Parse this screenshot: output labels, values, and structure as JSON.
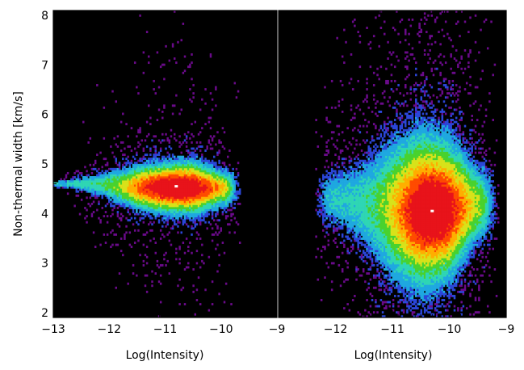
{
  "chart_data": [
    {
      "type": "heatmap",
      "panel": "left",
      "xlabel": "Log(Intensity)",
      "ylabel": "Non-thermal width [km/s]",
      "xlim": [
        -13,
        -9
      ],
      "ylim": [
        1.9,
        8.1
      ],
      "xticks": [
        -13,
        -12,
        -11,
        -10,
        -9
      ],
      "xtick_labels": [
        "−13",
        "−12",
        "−11",
        "−10",
        "−9"
      ],
      "yticks": [
        2,
        3,
        4,
        5,
        6,
        7,
        8
      ],
      "peak": {
        "x": -10.8,
        "y": 4.55
      },
      "structure": [
        {
          "x": -13.0,
          "y_center": 4.6,
          "y_half_width": 0.05
        },
        {
          "x": -12.5,
          "y_center": 4.6,
          "y_half_width": 0.15
        },
        {
          "x": -12.0,
          "y_center": 4.57,
          "y_half_width": 0.3
        },
        {
          "x": -11.5,
          "y_center": 4.52,
          "y_half_width": 0.5
        },
        {
          "x": -11.0,
          "y_center": 4.5,
          "y_half_width": 0.6
        },
        {
          "x": -10.5,
          "y_center": 4.5,
          "y_half_width": 0.65
        },
        {
          "x": -10.0,
          "y_center": 4.5,
          "y_half_width": 0.4
        }
      ]
    },
    {
      "type": "heatmap",
      "panel": "right",
      "xlabel": "Log(Intensity)",
      "ylabel": "",
      "xlim": [
        -13,
        -9
      ],
      "ylim": [
        1.9,
        8.1
      ],
      "xticks": [
        -12,
        -11,
        -10,
        -9
      ],
      "xtick_labels": [
        "−12",
        "−11",
        "−10",
        "−9"
      ],
      "peak": {
        "x": -10.3,
        "y": 4.05
      },
      "structure": [
        {
          "x": -12.0,
          "y_center": 4.3,
          "y_half_width": 0.6
        },
        {
          "x": -11.5,
          "y_center": 4.2,
          "y_half_width": 1.0
        },
        {
          "x": -11.0,
          "y_center": 4.1,
          "y_half_width": 1.6
        },
        {
          "x": -10.5,
          "y_center": 4.05,
          "y_half_width": 1.9
        },
        {
          "x": -10.0,
          "y_center": 4.1,
          "y_half_width": 1.6
        },
        {
          "x": -9.5,
          "y_center": 4.2,
          "y_half_width": 0.8
        }
      ]
    }
  ],
  "colors": {
    "background": "#000000",
    "scale": [
      "#6a0a8a",
      "#2b46d8",
      "#1fa8e0",
      "#2fd6b4",
      "#49d22e",
      "#d8e21a",
      "#ffae00",
      "#ff4b00",
      "#e8131a",
      "#ffffff"
    ]
  }
}
